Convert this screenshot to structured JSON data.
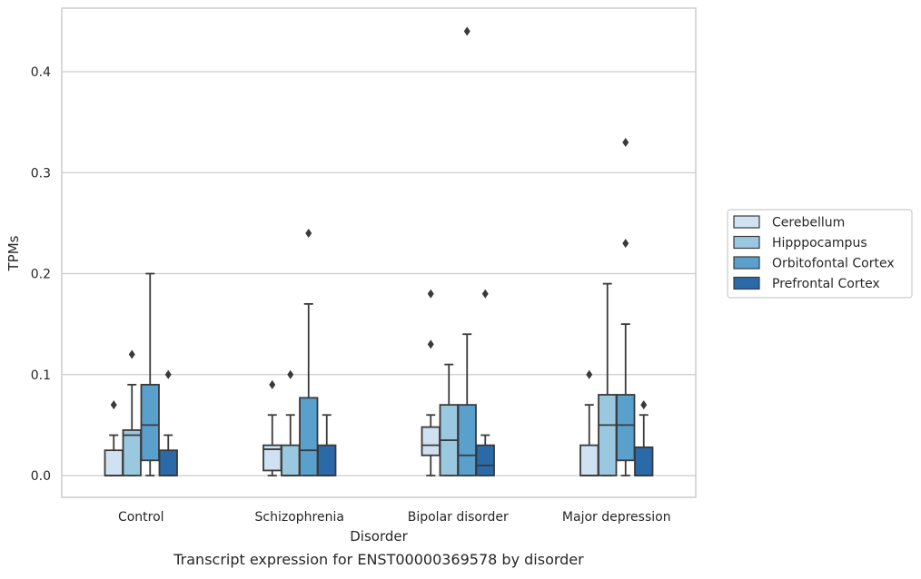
{
  "chart_data": {
    "type": "box",
    "title": "",
    "caption": "Transcript expression for ENST00000369578 by disorder",
    "xlabel": "Disorder",
    "ylabel": "TPMs",
    "ylim": [
      -0.021,
      0.463
    ],
    "yticks": [
      0.0,
      0.1,
      0.2,
      0.3,
      0.4
    ],
    "ytick_labels": [
      "0.0",
      "0.1",
      "0.2",
      "0.3",
      "0.4"
    ],
    "grid": "horizontal",
    "legend_position": "right",
    "categories": [
      "Control",
      "Schizophrenia",
      "Bipolar disorder",
      "Major depression"
    ],
    "series": [
      {
        "name": "Cerebellum",
        "color": "#d0e1f2",
        "boxes": [
          {
            "whislo": 0.0,
            "q1": 0.0,
            "med": 0.0,
            "q3": 0.025,
            "whishi": 0.04,
            "fliers": [
              0.07
            ]
          },
          {
            "whislo": 0.0,
            "q1": 0.005,
            "med": 0.026,
            "q3": 0.03,
            "whishi": 0.06,
            "fliers": [
              0.09
            ]
          },
          {
            "whislo": 0.0,
            "q1": 0.02,
            "med": 0.03,
            "q3": 0.048,
            "whishi": 0.06,
            "fliers": [
              0.13,
              0.18
            ]
          },
          {
            "whislo": 0.0,
            "q1": 0.0,
            "med": 0.0,
            "q3": 0.03,
            "whishi": 0.07,
            "fliers": [
              0.1
            ]
          }
        ]
      },
      {
        "name": "Hipppocampus",
        "color": "#9ac8e0",
        "boxes": [
          {
            "whislo": 0.0,
            "q1": 0.0,
            "med": 0.04,
            "q3": 0.045,
            "whishi": 0.09,
            "fliers": [
              0.12
            ]
          },
          {
            "whislo": 0.0,
            "q1": 0.0,
            "med": 0.0,
            "q3": 0.03,
            "whishi": 0.06,
            "fliers": [
              0.1
            ]
          },
          {
            "whislo": 0.0,
            "q1": 0.0,
            "med": 0.035,
            "q3": 0.07,
            "whishi": 0.11,
            "fliers": []
          },
          {
            "whislo": 0.0,
            "q1": 0.0,
            "med": 0.05,
            "q3": 0.08,
            "whishi": 0.19,
            "fliers": []
          }
        ]
      },
      {
        "name": "Orbitofontal Cortex",
        "color": "#5aa0cd",
        "boxes": [
          {
            "whislo": 0.0,
            "q1": 0.015,
            "med": 0.05,
            "q3": 0.09,
            "whishi": 0.2,
            "fliers": []
          },
          {
            "whislo": 0.0,
            "q1": 0.0,
            "med": 0.025,
            "q3": 0.077,
            "whishi": 0.17,
            "fliers": [
              0.24
            ]
          },
          {
            "whislo": 0.0,
            "q1": 0.0,
            "med": 0.02,
            "q3": 0.07,
            "whishi": 0.14,
            "fliers": [
              0.44
            ]
          },
          {
            "whislo": 0.0,
            "q1": 0.015,
            "med": 0.05,
            "q3": 0.08,
            "whishi": 0.15,
            "fliers": [
              0.23,
              0.33
            ]
          }
        ]
      },
      {
        "name": "Prefrontal Cortex",
        "color": "#2a6aa8",
        "boxes": [
          {
            "whislo": 0.0,
            "q1": 0.0,
            "med": 0.0,
            "q3": 0.025,
            "whishi": 0.04,
            "fliers": [
              0.1
            ]
          },
          {
            "whislo": 0.0,
            "q1": 0.0,
            "med": 0.0,
            "q3": 0.03,
            "whishi": 0.06,
            "fliers": []
          },
          {
            "whislo": 0.0,
            "q1": 0.0,
            "med": 0.01,
            "q3": 0.03,
            "whishi": 0.04,
            "fliers": [
              0.18
            ]
          },
          {
            "whislo": 0.0,
            "q1": 0.0,
            "med": 0.0,
            "q3": 0.028,
            "whishi": 0.06,
            "fliers": [
              0.07
            ]
          }
        ]
      }
    ]
  }
}
